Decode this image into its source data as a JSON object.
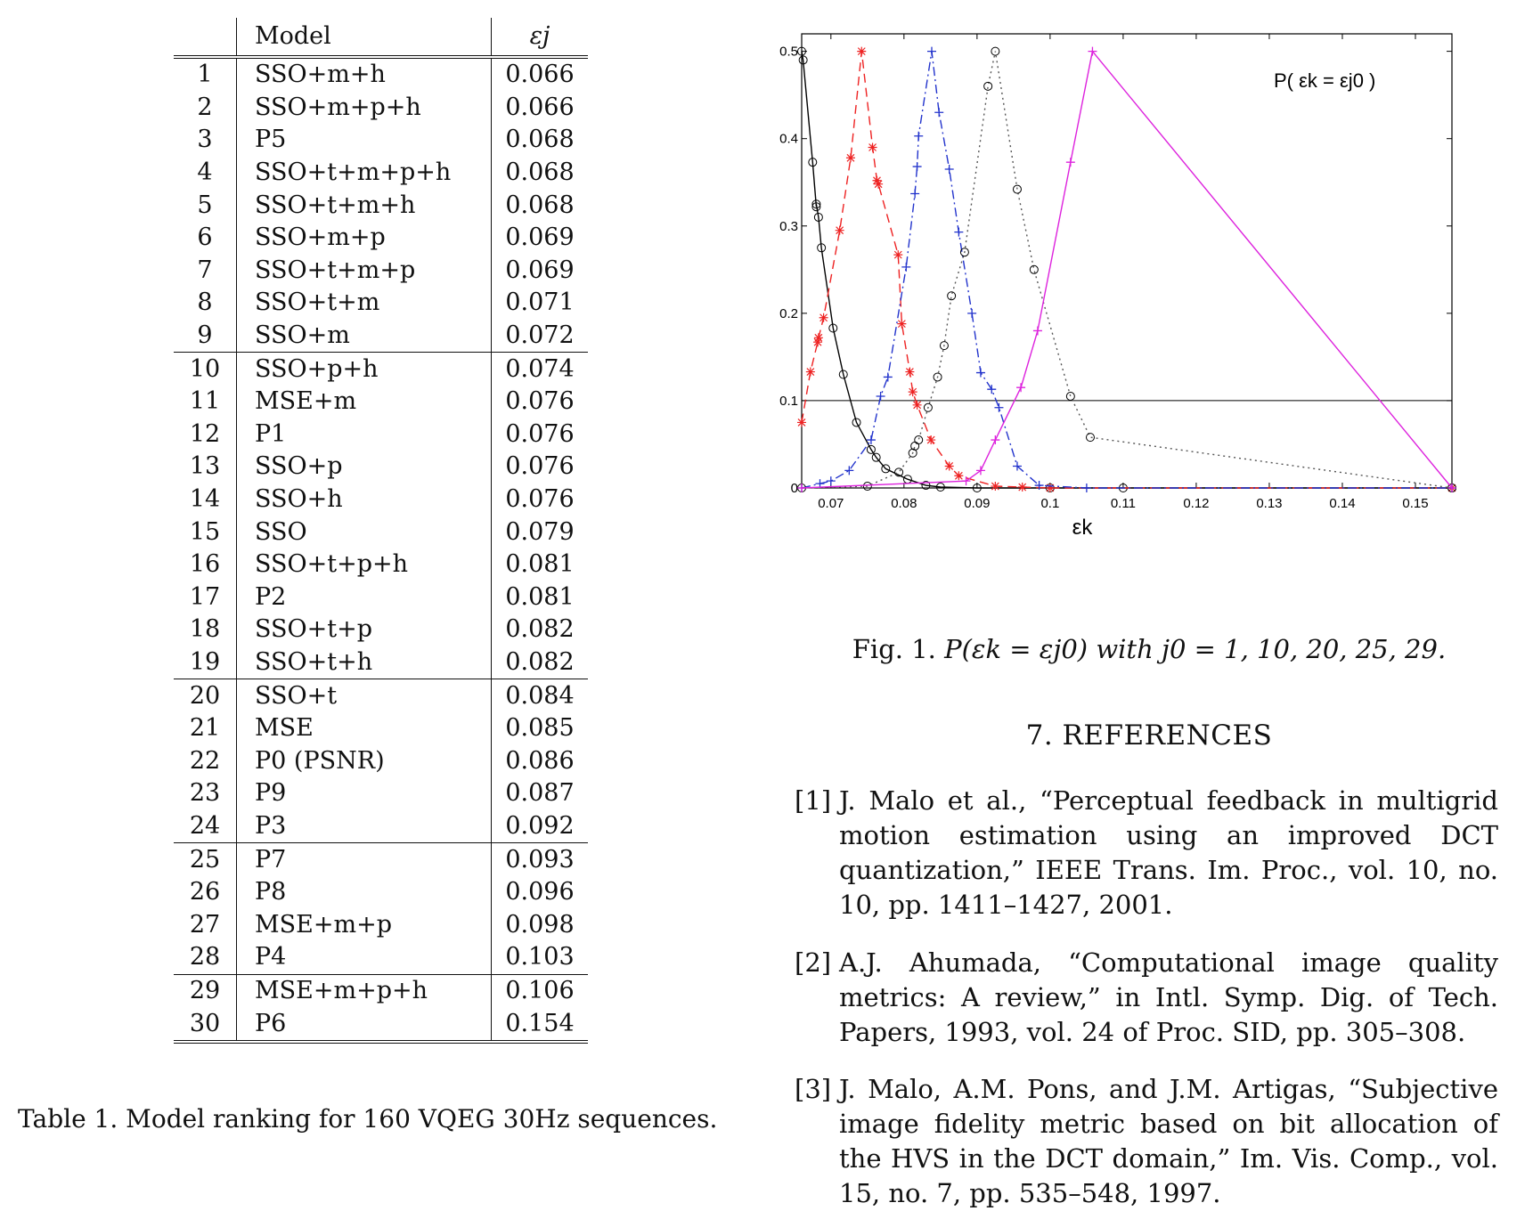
{
  "table": {
    "headers": {
      "index": "",
      "model": "Model",
      "epsilon": "εj"
    },
    "rows": [
      {
        "idx": "1",
        "model": "SSO+m+h",
        "eps": "0.066"
      },
      {
        "idx": "2",
        "model": "SSO+m+p+h",
        "eps": "0.066"
      },
      {
        "idx": "3",
        "model": "P5",
        "eps": "0.068"
      },
      {
        "idx": "4",
        "model": "SSO+t+m+p+h",
        "eps": "0.068"
      },
      {
        "idx": "5",
        "model": "SSO+t+m+h",
        "eps": "0.068"
      },
      {
        "idx": "6",
        "model": "SSO+m+p",
        "eps": "0.069"
      },
      {
        "idx": "7",
        "model": "SSO+t+m+p",
        "eps": "0.069"
      },
      {
        "idx": "8",
        "model": "SSO+t+m",
        "eps": "0.071"
      },
      {
        "idx": "9",
        "model": "SSO+m",
        "eps": "0.072"
      },
      {
        "idx": "10",
        "model": "SSO+p+h",
        "eps": "0.074"
      },
      {
        "idx": "11",
        "model": "MSE+m",
        "eps": "0.076"
      },
      {
        "idx": "12",
        "model": "P1",
        "eps": "0.076"
      },
      {
        "idx": "13",
        "model": "SSO+p",
        "eps": "0.076"
      },
      {
        "idx": "14",
        "model": "SSO+h",
        "eps": "0.076"
      },
      {
        "idx": "15",
        "model": "SSO",
        "eps": "0.079"
      },
      {
        "idx": "16",
        "model": "SSO+t+p+h",
        "eps": "0.081"
      },
      {
        "idx": "17",
        "model": "P2",
        "eps": "0.081"
      },
      {
        "idx": "18",
        "model": "SSO+t+p",
        "eps": "0.082"
      },
      {
        "idx": "19",
        "model": "SSO+t+h",
        "eps": "0.082"
      },
      {
        "idx": "20",
        "model": "SSO+t",
        "eps": "0.084"
      },
      {
        "idx": "21",
        "model": "MSE",
        "eps": "0.085"
      },
      {
        "idx": "22",
        "model": "P0 (PSNR)",
        "eps": "0.086"
      },
      {
        "idx": "23",
        "model": "P9",
        "eps": "0.087"
      },
      {
        "idx": "24",
        "model": "P3",
        "eps": "0.092"
      },
      {
        "idx": "25",
        "model": "P7",
        "eps": "0.093"
      },
      {
        "idx": "26",
        "model": "P8",
        "eps": "0.096"
      },
      {
        "idx": "27",
        "model": "MSE+m+p",
        "eps": "0.098"
      },
      {
        "idx": "28",
        "model": "P4",
        "eps": "0.103"
      },
      {
        "idx": "29",
        "model": "MSE+m+p+h",
        "eps": "0.106"
      },
      {
        "idx": "30",
        "model": "P6",
        "eps": "0.154"
      }
    ],
    "group_starts": [
      10,
      20,
      25,
      29
    ],
    "caption": "Table 1. Model ranking for 160 VQEG 30Hz sequences."
  },
  "chart_data": {
    "type": "line",
    "title": "",
    "annotation": "P( εk = εj0 )",
    "xlabel": "εk",
    "ylabel": "",
    "xlim": [
      0.066,
      0.155
    ],
    "ylim": [
      0,
      0.52
    ],
    "xticks": [
      0.07,
      0.08,
      0.09,
      0.1,
      0.11,
      0.12,
      0.13,
      0.14,
      0.15
    ],
    "xtick_labels": [
      "0.07",
      "0.08",
      "0.09",
      "0.1",
      "0.11",
      "0.12",
      "0.13",
      "0.14",
      "0.15"
    ],
    "yticks": [
      0,
      0.1,
      0.2,
      0.3,
      0.4,
      0.5
    ],
    "ytick_labels": [
      "0",
      "0.1",
      "0.2",
      "0.3",
      "0.4",
      "0.5"
    ],
    "hline": 0.1,
    "series": [
      {
        "color": "#000000",
        "style": "solid",
        "marker": "circle",
        "points": [
          [
            0.066,
            0.5
          ],
          [
            0.0662,
            0.49
          ],
          [
            0.0675,
            0.373
          ],
          [
            0.068,
            0.322
          ],
          [
            0.068,
            0.325
          ],
          [
            0.0683,
            0.31
          ],
          [
            0.0687,
            0.275
          ],
          [
            0.0703,
            0.183
          ],
          [
            0.0717,
            0.13
          ],
          [
            0.0735,
            0.075
          ],
          [
            0.0755,
            0.044
          ],
          [
            0.0762,
            0.035
          ],
          [
            0.0775,
            0.022
          ],
          [
            0.0805,
            0.01
          ],
          [
            0.083,
            0.003
          ],
          [
            0.085,
            0.001
          ],
          [
            0.09,
            0
          ],
          [
            0.1,
            0
          ],
          [
            0.11,
            0
          ],
          [
            0.155,
            0
          ]
        ]
      },
      {
        "color": "#ee2222",
        "style": "dashed",
        "marker": "star",
        "points": [
          [
            0.066,
            0.075
          ],
          [
            0.0672,
            0.133
          ],
          [
            0.0682,
            0.167
          ],
          [
            0.0683,
            0.172
          ],
          [
            0.069,
            0.195
          ],
          [
            0.0712,
            0.295
          ],
          [
            0.0727,
            0.378
          ],
          [
            0.0742,
            0.5
          ],
          [
            0.0757,
            0.39
          ],
          [
            0.0763,
            0.352
          ],
          [
            0.0765,
            0.348
          ],
          [
            0.0792,
            0.267
          ],
          [
            0.0797,
            0.188
          ],
          [
            0.0808,
            0.133
          ],
          [
            0.0812,
            0.11
          ],
          [
            0.0818,
            0.095
          ],
          [
            0.0837,
            0.055
          ],
          [
            0.0862,
            0.025
          ],
          [
            0.0875,
            0.014
          ],
          [
            0.0925,
            0.002
          ],
          [
            0.0962,
            0.001
          ],
          [
            0.1,
            0
          ],
          [
            0.155,
            0
          ]
        ]
      },
      {
        "color": "#2233cc",
        "style": "dashdot",
        "marker": "plus",
        "points": [
          [
            0.066,
            0
          ],
          [
            0.0685,
            0.005
          ],
          [
            0.07,
            0.008
          ],
          [
            0.0725,
            0.02
          ],
          [
            0.0755,
            0.055
          ],
          [
            0.0768,
            0.105
          ],
          [
            0.0778,
            0.127
          ],
          [
            0.0803,
            0.253
          ],
          [
            0.0815,
            0.337
          ],
          [
            0.0818,
            0.368
          ],
          [
            0.082,
            0.403
          ],
          [
            0.0838,
            0.5
          ],
          [
            0.0848,
            0.43
          ],
          [
            0.0862,
            0.365
          ],
          [
            0.0875,
            0.293
          ],
          [
            0.0893,
            0.2
          ],
          [
            0.0905,
            0.132
          ],
          [
            0.092,
            0.113
          ],
          [
            0.093,
            0.092
          ],
          [
            0.0955,
            0.025
          ],
          [
            0.0985,
            0.003
          ],
          [
            0.105,
            0
          ],
          [
            0.155,
            0
          ]
        ]
      },
      {
        "color": "#555555",
        "style": "dotted",
        "marker": "circle",
        "points": [
          [
            0.066,
            0
          ],
          [
            0.075,
            0.002
          ],
          [
            0.0793,
            0.018
          ],
          [
            0.0812,
            0.04
          ],
          [
            0.0815,
            0.048
          ],
          [
            0.082,
            0.055
          ],
          [
            0.0833,
            0.092
          ],
          [
            0.0846,
            0.127
          ],
          [
            0.0855,
            0.163
          ],
          [
            0.0865,
            0.22
          ],
          [
            0.0883,
            0.27
          ],
          [
            0.0915,
            0.46
          ],
          [
            0.0925,
            0.5
          ],
          [
            0.0955,
            0.342
          ],
          [
            0.0978,
            0.25
          ],
          [
            0.1028,
            0.105
          ],
          [
            0.1055,
            0.058
          ],
          [
            0.155,
            0
          ]
        ]
      },
      {
        "color": "#dd22dd",
        "style": "solid",
        "marker": "plus",
        "points": [
          [
            0.066,
            0
          ],
          [
            0.0885,
            0.008
          ],
          [
            0.0905,
            0.02
          ],
          [
            0.0925,
            0.055
          ],
          [
            0.096,
            0.115
          ],
          [
            0.0983,
            0.18
          ],
          [
            0.1028,
            0.373
          ],
          [
            0.1058,
            0.5
          ],
          [
            0.155,
            0
          ]
        ]
      }
    ]
  },
  "figure": {
    "caption_prefix": "Fig. 1.",
    "caption_math": "P(εk = εj0) with j0 = 1, 10, 20, 25, 29."
  },
  "references": {
    "title": "7. REFERENCES",
    "items": [
      {
        "num": "[1]",
        "text": "J. Malo et al., “Perceptual feedback in multigrid motion estimation using an improved DCT quantization,” IEEE Trans. Im. Proc., vol. 10, no. 10, pp. 1411–1427, 2001."
      },
      {
        "num": "[2]",
        "text": "A.J. Ahumada, “Computational image quality metrics: A review,” in Intl. Symp. Dig. of Tech. Papers, 1993, vol. 24 of Proc. SID, pp. 305–308."
      },
      {
        "num": "[3]",
        "text": "J. Malo, A.M. Pons, and J.M. Artigas, “Subjective image fidelity metric based on bit allocation of the HVS in the DCT domain,” Im. Vis. Comp., vol. 15, no. 7, pp. 535–548, 1997."
      }
    ]
  }
}
